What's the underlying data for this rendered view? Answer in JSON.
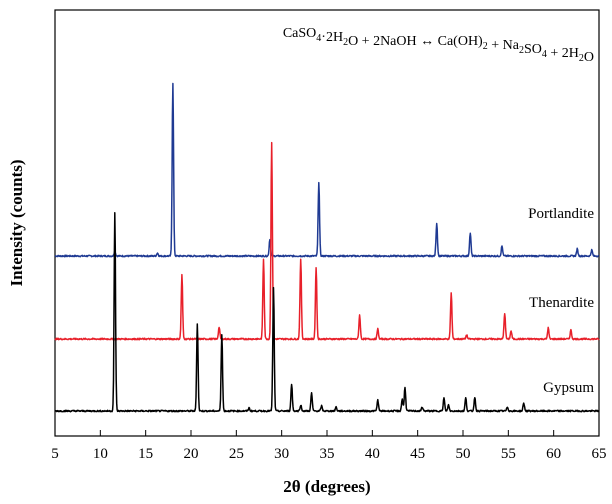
{
  "chart_data": {
    "type": "line",
    "title": "",
    "xlabel": "2θ (degrees)",
    "ylabel": "Intensity (counts)",
    "xlim": [
      5,
      65
    ],
    "xticks": [
      5,
      10,
      15,
      20,
      25,
      30,
      35,
      40,
      45,
      50,
      55,
      60,
      65
    ],
    "yticks_shown": false,
    "annotation": {
      "equation": "CaSO4·2H2O + 2NaOH ↔ Ca(OH)2 + Na2SO4 + 2H2O",
      "parts": [
        {
          "text": "CaSO",
          "sub": false
        },
        {
          "text": "4",
          "sub": true
        },
        {
          "text": "·2H",
          "sub": false
        },
        {
          "text": "2",
          "sub": true
        },
        {
          "text": "O + 2NaOH ↔ Ca(OH)",
          "sub": false
        },
        {
          "text": "2",
          "sub": true
        },
        {
          "text": " + Na",
          "sub": false
        },
        {
          "text": "2",
          "sub": true
        },
        {
          "text": "SO",
          "sub": false
        },
        {
          "text": "4",
          "sub": true
        },
        {
          "text": " + 2H",
          "sub": false
        },
        {
          "text": "2",
          "sub": true
        },
        {
          "text": "O",
          "sub": false
        }
      ]
    },
    "intensity_units": "relative",
    "series": [
      {
        "name": "Portlandite",
        "color": "#1f3a93",
        "baseline": 1.55,
        "peaks": [
          {
            "x": 11.6,
            "h": 0.05
          },
          {
            "x": 16.3,
            "h": 0.03
          },
          {
            "x": 18.0,
            "h": 1.73
          },
          {
            "x": 28.7,
            "h": 0.17
          },
          {
            "x": 34.1,
            "h": 0.74
          },
          {
            "x": 47.1,
            "h": 0.33
          },
          {
            "x": 50.8,
            "h": 0.23
          },
          {
            "x": 54.3,
            "h": 0.1
          },
          {
            "x": 62.6,
            "h": 0.07
          },
          {
            "x": 64.2,
            "h": 0.06
          }
        ]
      },
      {
        "name": "Thenardite",
        "color": "#e8202a",
        "baseline": 0.72,
        "peaks": [
          {
            "x": 19.0,
            "h": 0.64
          },
          {
            "x": 23.1,
            "h": 0.12
          },
          {
            "x": 28.0,
            "h": 0.8
          },
          {
            "x": 28.9,
            "h": 1.97
          },
          {
            "x": 32.1,
            "h": 0.8
          },
          {
            "x": 33.8,
            "h": 0.72
          },
          {
            "x": 38.6,
            "h": 0.24
          },
          {
            "x": 40.6,
            "h": 0.1
          },
          {
            "x": 48.7,
            "h": 0.46
          },
          {
            "x": 50.4,
            "h": 0.04
          },
          {
            "x": 54.6,
            "h": 0.26
          },
          {
            "x": 55.3,
            "h": 0.08
          },
          {
            "x": 59.4,
            "h": 0.11
          },
          {
            "x": 61.9,
            "h": 0.09
          }
        ]
      },
      {
        "name": "Gypsum",
        "color": "#000000",
        "baseline": 0.0,
        "peaks": [
          {
            "x": 11.6,
            "h": 1.98
          },
          {
            "x": 20.7,
            "h": 0.87
          },
          {
            "x": 23.4,
            "h": 0.77
          },
          {
            "x": 26.4,
            "h": 0.03
          },
          {
            "x": 29.1,
            "h": 1.23
          },
          {
            "x": 31.1,
            "h": 0.27
          },
          {
            "x": 32.1,
            "h": 0.06
          },
          {
            "x": 33.3,
            "h": 0.18
          },
          {
            "x": 34.4,
            "h": 0.05
          },
          {
            "x": 36.0,
            "h": 0.04
          },
          {
            "x": 40.6,
            "h": 0.11
          },
          {
            "x": 43.3,
            "h": 0.12
          },
          {
            "x": 43.6,
            "h": 0.24
          },
          {
            "x": 45.5,
            "h": 0.04
          },
          {
            "x": 47.9,
            "h": 0.13
          },
          {
            "x": 48.4,
            "h": 0.06
          },
          {
            "x": 50.3,
            "h": 0.13
          },
          {
            "x": 51.3,
            "h": 0.14
          },
          {
            "x": 54.9,
            "h": 0.04
          },
          {
            "x": 56.7,
            "h": 0.08
          }
        ]
      }
    ]
  }
}
